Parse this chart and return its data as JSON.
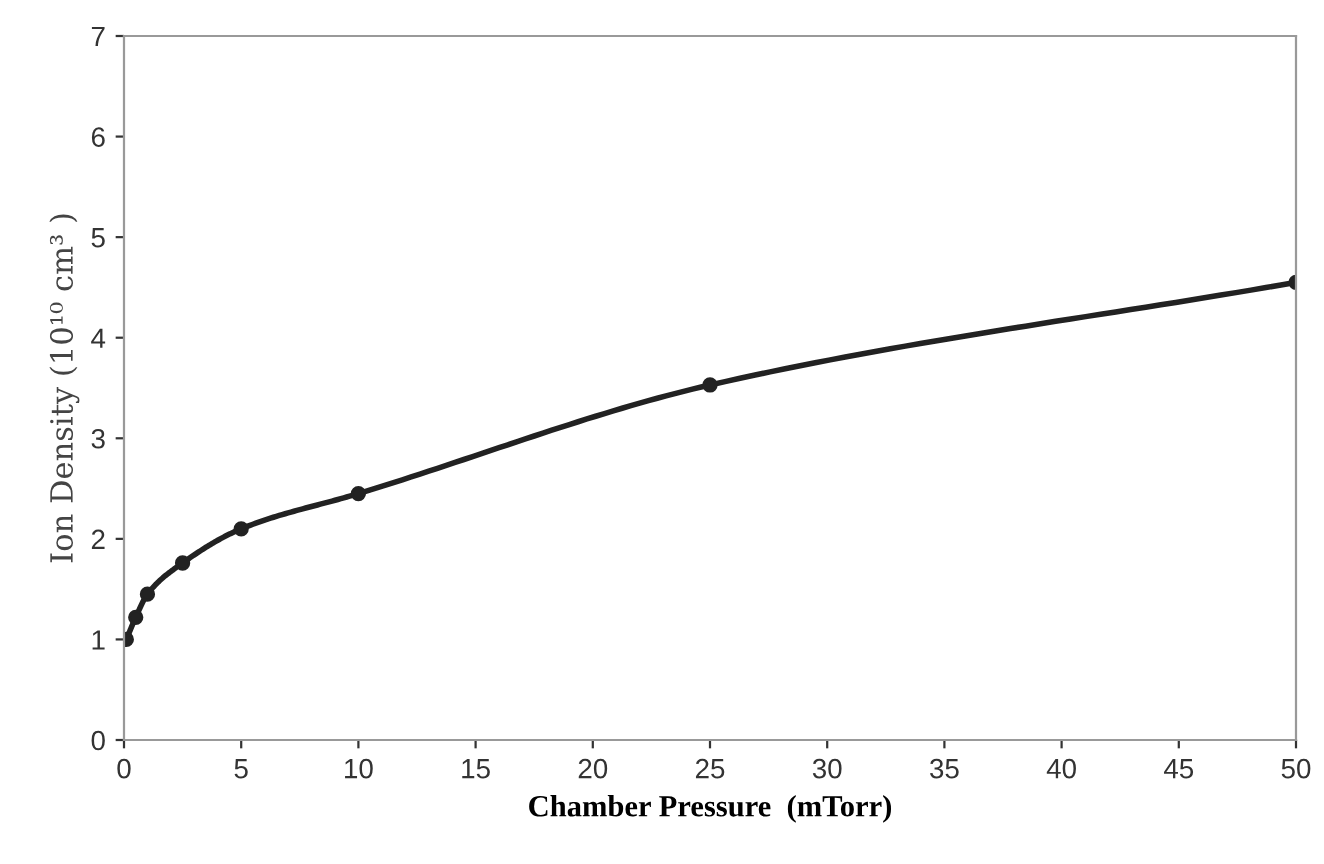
{
  "chart_data": {
    "type": "line",
    "xlabel": "Chamber Pressure  (mTorr)",
    "ylabel": "Ion Density (10¹⁰ cm³ )",
    "x": [
      0.1,
      0.5,
      1,
      2.5,
      5,
      10,
      25,
      50
    ],
    "series": [
      {
        "color": "#222222",
        "values": [
          1.0,
          1.22,
          1.45,
          1.76,
          2.1,
          2.45,
          3.53,
          4.55
        ]
      }
    ],
    "xlim": [
      0,
      50
    ],
    "xticks": [
      0,
      5,
      10,
      15,
      20,
      25,
      30,
      35,
      40,
      45,
      50
    ],
    "ylim": [
      0,
      7
    ],
    "yticks": [
      0,
      1,
      2,
      3,
      4,
      5,
      6,
      7
    ],
    "marker": "circle",
    "line_style": "solid",
    "grid": false
  }
}
